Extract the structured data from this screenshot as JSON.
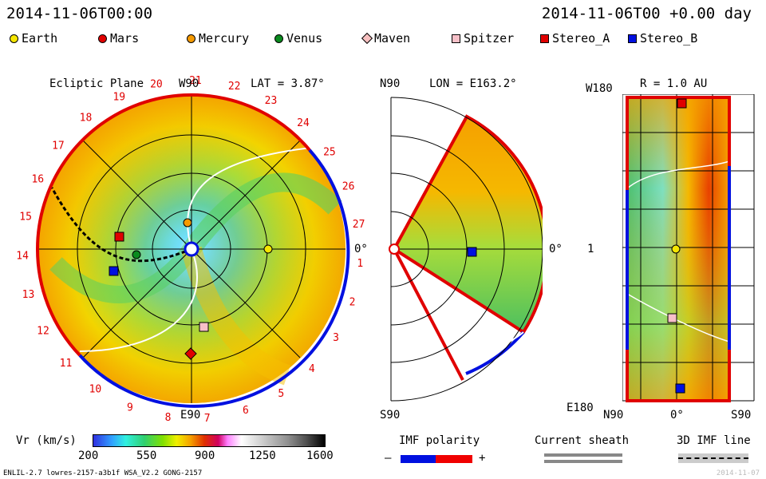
{
  "header": {
    "datetime": "2014-11-06T00:00",
    "offset": "2014-11-06T00 +0.00 day"
  },
  "legend": [
    {
      "name": "Earth",
      "color": "#f5e600",
      "shape": "circle"
    },
    {
      "name": "Mars",
      "color": "#e00000",
      "shape": "circle"
    },
    {
      "name": "Mercury",
      "color": "#f59a00",
      "shape": "circle"
    },
    {
      "name": "Venus",
      "color": "#0a8a1e",
      "shape": "circle"
    },
    {
      "name": "Maven",
      "color": "#f7c0c0",
      "shape": "diamond"
    },
    {
      "name": "Spitzer",
      "color": "#f7c0c8",
      "shape": "square"
    },
    {
      "name": "Stereo_A",
      "color": "#e00000",
      "shape": "square"
    },
    {
      "name": "Stereo_B",
      "color": "#0010e0",
      "shape": "square"
    }
  ],
  "panel_ecliptic": {
    "title": "Ecliptic Plane",
    "top_label": "W90",
    "lat": "LAT = 3.87°",
    "bottom_label": "E90",
    "right_label": "0°",
    "rotation_numbers": [
      "20",
      "21",
      "22",
      "23",
      "24",
      "25",
      "26",
      "27",
      "1",
      "2",
      "3",
      "4",
      "5",
      "6",
      "7",
      "8",
      "9",
      "10",
      "11",
      "12",
      "13",
      "14",
      "15",
      "16",
      "17",
      "18",
      "19"
    ]
  },
  "panel_meridional": {
    "top_label": "N90",
    "lon": "LON = E163.2°",
    "bottom_label": "S90",
    "right_label": "0°"
  },
  "panel_radial": {
    "r": "R = 1.0 AU",
    "top_label": "W180",
    "bottom_label": "E180",
    "mid_label": "1",
    "x_left": "N90",
    "x_mid": "0°",
    "x_right": "S90"
  },
  "colorbar": {
    "label": "Vr (km/s)",
    "ticks": [
      "200",
      "550",
      "900",
      "1250",
      "1600"
    ]
  },
  "imf": {
    "title": "IMF polarity",
    "minus": "–",
    "plus": "+"
  },
  "sheath": {
    "title": "Current sheath"
  },
  "imf3d": {
    "title": "3D IMF line"
  },
  "footer": {
    "left": "ENLIL-2.7 lowres-2157-a3b1f WSA_V2.2 GONG-2157",
    "right": "2014-11-07"
  }
}
